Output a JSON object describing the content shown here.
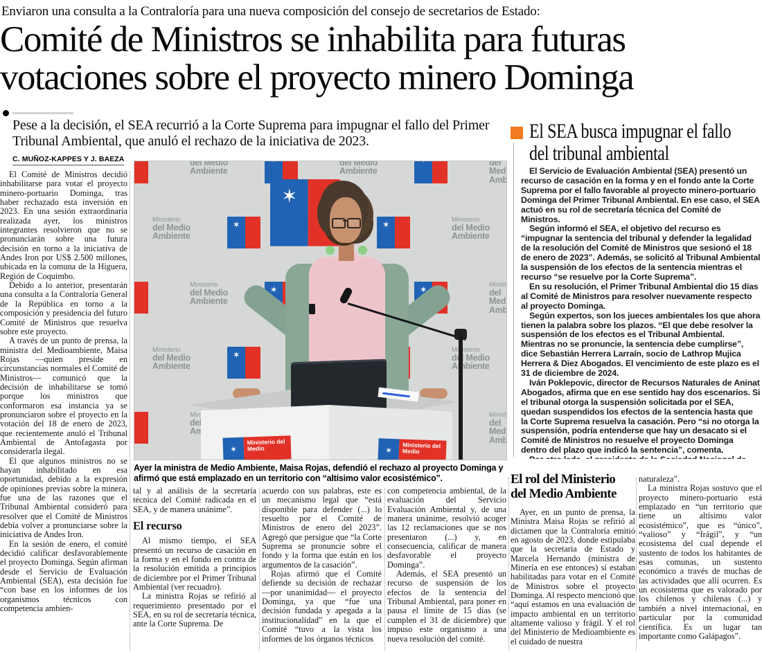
{
  "colors": {
    "accent_orange": "#f47b20",
    "logo_blue": "#2062b4",
    "logo_red": "#e23127",
    "backdrop_gray": "#d6d8d7"
  },
  "kicker": "Enviaron una consulta a la Contraloría para una nueva composición del consejo de secretarios de Estado:",
  "headline_line1": "Comité de Ministros se inhabilita para futuras",
  "headline_line2": "votaciones sobre el proyecto minero Dominga",
  "deck": "Pese a la decisión, el SEA recurrió a la Corte Suprema para impugnar el fallo del Primer Tribunal Ambiental, que anuló el rechazo de la iniciativa de 2023.",
  "byline": "C. MUÑOZ-KAPPES Y J. BAEZA",
  "body": {
    "col1": [
      {
        "t": "El Comité de Ministros decidió inhabilitarse para votar el proyecto minero-portuario Dominga, tras haber rechazado esta inversión en 2023. En una sesión extraordinaria realizada ayer, los ministros integrantes resolvieron que no se pronunciarán sobre una futura decisión en torno a la iniciativa de Andes Iron por US$ 2.500 millones, ubicada en la comuna de la Higuera, Región de Coquimbo."
      },
      {
        "t": "Debido a lo anterior, presentarán una consulta a la Contraloría General de la República en torno a la composición y presidencia del futuro Comité de Ministros que resuelva sobre este proyecto."
      },
      {
        "t": "A través de un punto de prensa, la ministra del Medioambiente, Maisa Rojas —quien preside en circunstancias normales el Comité de Ministros— comunicó que la decisión de inhabilitarse se tomó porque los ministros que conformaron esa instancia ya se pronunciaron sobre el proyecto en la votación del 18 de enero de 2023, que recientemente anuló el Tribunal Ambiental de Antofagasta por considerarla ilegal."
      },
      {
        "t": "El que algunos ministros no se hayan inhabilitado en esa oportunidad, debido a la expresión de opiniones previas sobre la minera, fue una de las razones que el Tribunal Ambiental consideró para resolver que el Comité de Ministros debía volver a pronunciarse sobre la iniciativa de Andes Iron."
      },
      {
        "t": "En la sesión de enero, el comité decidió calificar desfavorablemente el proyecto Dominga. Según afirman desde el Servicio de Evaluación Ambiental (SEA), esta decisión fue “con base en los informes de los organismos técnicos con competencia ambien-"
      }
    ],
    "col2_lead": [
      {
        "t": "tal y al análisis de la secretaría técnica del Comité radicada en el SEA, y de manera unánime”.",
        "ni": true
      }
    ],
    "col2_subhead": "El recurso",
    "col2_rest": [
      {
        "t": "Al mismo tiempo, el SEA presentó un recurso de casación en la forma y en el fondo en contra de la resolución emitida a principios de diciembre por el Primer Tribunal Ambiental (ver recuadro)."
      },
      {
        "t": "La ministra Rojas se refirió al requerimiento presentado por el SEA, en su rol de secretaría técnica, ante la Corte Suprema. De"
      }
    ],
    "col3": [
      {
        "t": "acuerdo con sus palabras, este es un mecanismo legal que “está disponible para defender (...) lo resuelto por el Comité de Ministros de enero del 2023”. Agregó que persigue que “la Corte Suprema se pronuncie sobre el fondo y la forma que están en los argumentos de la casación”.",
        "ni": true
      },
      {
        "t": "Rojas afirmó que el Comité defiende su decisión de rechazar —por unanimidad— el proyecto Dominga, ya que “fue una decisión fundada y apegada a la institucionalidad” en la que el Comité “tuvo a la vista los informes de los órganos técnicos"
      }
    ],
    "col4": [
      {
        "t": "con competencia ambiental, de la evaluación del Servicio Evaluación Ambiental y, de una manera unánime, resolvió acoger las 12 reclamaciones que se nos presentaron (...) y, en consecuencia, calificar de manera desfavorable el proyecto Dominga”.",
        "ni": true
      },
      {
        "t": "Además, el SEA presentó un recurso de suspensión de los efectos de la sentencia del Tribunal Ambiental, para poner en pausa el límite de 15 días (se cumplen el 31 de diciembre) que impuso este organismo a una nueva resolución del comité."
      }
    ]
  },
  "photo": {
    "caption": "Ayer la ministra de Medio Ambiente, Maisa Rojas, defendió el rechazo al proyecto Dominga y afirmó que está emplazado en un territorio con “altísimo valor ecosistémico”.",
    "backdrop_line1": "Ministerio",
    "backdrop_line2": "del Medio",
    "backdrop_line3": "Ambiente",
    "logo_glyph": "✶",
    "podium_logo_line1": "Ministerio del",
    "podium_logo_line2": "Medio"
  },
  "sidebar": {
    "title_line1": "El SEA busca impugnar el fallo",
    "title_line2": "del tribunal ambiental",
    "paragraphs": [
      {
        "t": "El Servicio de Evaluación Ambiental (SEA) presentó un recurso de casación en la forma y en el fondo ante la Corte Suprema por el fallo favorable al proyecto minero-portuario Dominga del Primer Tribunal Ambiental. En ese caso, el SEA actuó en su rol de secretaría técnica del Comité de Ministros."
      },
      {
        "t": "Según informó el SEA, el objetivo del recurso es “impugnar la sentencia del tribunal y defender la legalidad de la resolución del Comité de Ministros que sesionó el 18 de enero de 2023”. Además, se solicitó al Tribunal Ambiental la suspensión de los efectos de la sentencia mientras el recurso “se resuelve por la Corte Suprema”."
      },
      {
        "t": "En su resolución, el Primer Tribunal Ambiental dio 15 días al Comité de Ministros para resolver nuevamente respecto al proyecto Dominga."
      },
      {
        "t": "Según expertos, son los jueces ambientales los que ahora tienen la palabra sobre los plazos. “El que debe resolver la suspensión de los efectos es el Tribunal Ambiental. Mientras no se pronuncie, la sentencia debe cumplirse”, dice Sebastián Herrera Larraín, socio de Lathrop Mujica Herrera & Diez Abogados. El vencimiento de este plazo es el 31 de diciembre de 2024."
      },
      {
        "t": "Iván Poklepovic, director de Recursos Naturales de Aninat Abogados, afirma que en ese sentido hay dos escenarios. Si el tribunal otorga la suspensión solicitada por el SEA, quedan suspendidos los efectos de la sentencia hasta que la Corte Suprema resuelva la casación. Pero “si no otorga la suspensión, podría entenderse que hay un desacato si el Comité de Ministros no resuelve el proyecto Dominga dentro del plazo que indicó la sentencia”, comenta."
      },
      {
        "t": "Por otro lado, el presidente de la Sociedad Nacional de Minería, Jorge Riesco, lamentó la decisión del Servicio de Evaluación Ambiental de presentar recursos de casación . “Hoy estamos viendo inconsistencias respecto a que la misma entidad que tiene que conducir el proceso para evaluar el proyecto está interponiendo recursos para evitar que se cumpla una sentencia del Tribunal Ambiental”, afirmó."
      }
    ]
  },
  "bottom": {
    "subhead_line1": "El rol del Ministerio",
    "subhead_line2": "del Medio Ambiente",
    "colA": [
      {
        "t": "Ayer, en un punto de prensa, la Ministra Maisa Rojas se refirió al dictamen que la Contraloría emitió en agosto de 2023, donde estipulaba que la secretaria de Estado y Marcela Hernando (ministra de Minería en ese entonces) sí estaban habilitadas para votar en el Comité de Ministros sobre el proyecto Dominga. Al respecto mencionó que “aquí estamos en una evaluación de impacto ambiental en un territorio altamente valioso y frágil. Y el rol del Ministerio de Medioambiente es el cuidado de nuestra"
      }
    ],
    "colB": [
      {
        "t": "naturaleza”.",
        "ni": true
      },
      {
        "t": "La ministra Rojas sostuvo que el proyecto minero-portuario está emplazado en “un territorio que tiene un altísimo valor ecosistémico”, que es “único”, “valioso” y “frágil”, y “un ecosistema del cual depende el sustento de todos los habitantes de esas comunas, un sustento económico a través de muchas de las actividades que allí ocurren. Es un ecosistema que es valorado por los chilenos y chilenas (...) y también a nivel internacional, en particular por la comunidad científica. Es un lugar tan importante como Galápagos”."
      }
    ]
  }
}
